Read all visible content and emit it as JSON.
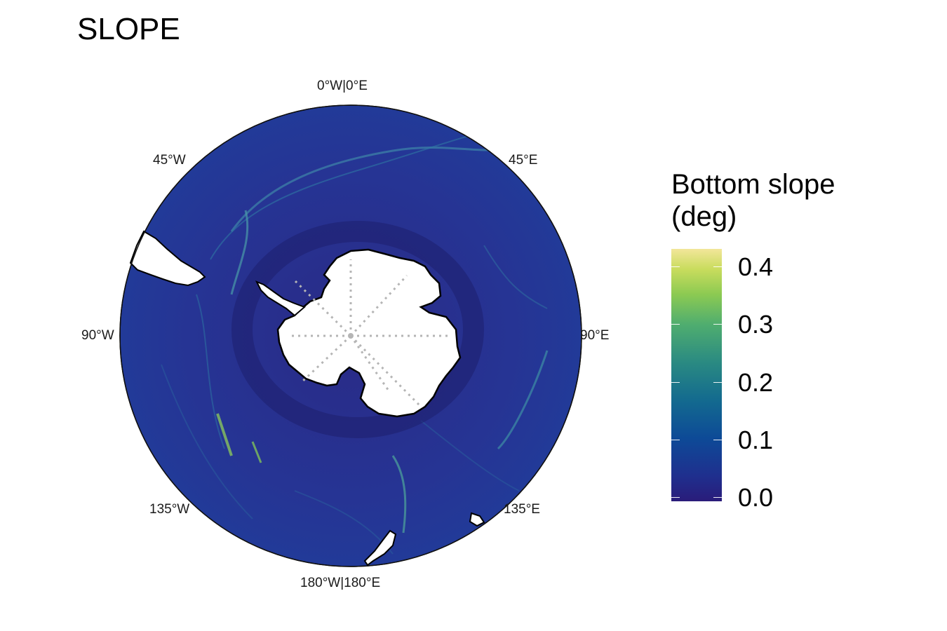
{
  "title": "SLOPE",
  "map": {
    "projection": "south-polar-stereographic",
    "ocean_color": "#2a2f8f",
    "land_color": "#ffffff",
    "graticule_color": "#b5b5b5",
    "longitude_labels": {
      "top": "0°W|0°E",
      "top_left": "45°W",
      "top_right": "45°E",
      "left": "90°W",
      "right": "90°E",
      "bottom_left": "135°W",
      "bottom_right": "135°E",
      "bottom": "180°W|180°E"
    }
  },
  "legend": {
    "title_line1": "Bottom slope",
    "title_line2": "(deg)",
    "color_scale": [
      "#2a1c7a",
      "#0d4a97",
      "#2a8a82",
      "#8cca52",
      "#f2e69a"
    ],
    "min": 0.0,
    "max": 0.43,
    "tick_labels": [
      "0.0",
      "0.1",
      "0.2",
      "0.3",
      "0.4"
    ]
  }
}
